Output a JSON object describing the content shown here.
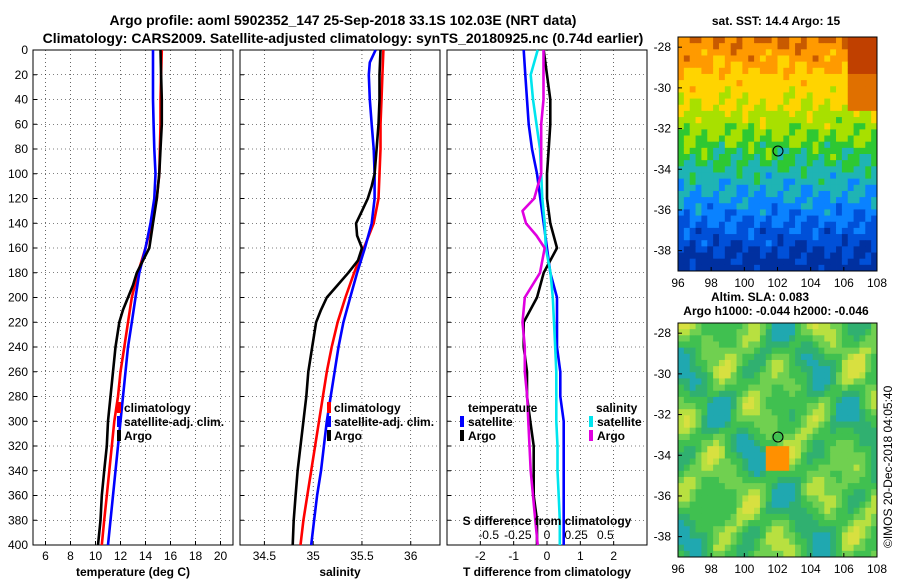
{
  "header": {
    "title_line1": "Argo profile: aoml 5902352_147 25-Sep-2018 33.1S 102.03E (NRT data)",
    "title_line2": "Climatology: CARS2009. Satellite-adjusted climatology: synTS_20180925.nc (0.74d earlier)"
  },
  "colors": {
    "argo": "#000000",
    "climatology": "#ff0000",
    "satellite": "#0000ff",
    "sat_salinity": "#00e5ee",
    "argo_salinity_diff": "#e000e0"
  },
  "chart_data": [
    {
      "type": "line",
      "title": "",
      "xlabel": "temperature (deg C)",
      "ylabel": "pressure",
      "xlim": [
        5,
        21
      ],
      "ylim": [
        400,
        0
      ],
      "xticks": [
        "6",
        "8",
        "10",
        "12",
        "14",
        "16",
        "18",
        "20"
      ],
      "yticks": [
        "0",
        "20",
        "40",
        "60",
        "80",
        "100",
        "120",
        "140",
        "160",
        "180",
        "200",
        "220",
        "240",
        "260",
        "280",
        "300",
        "320",
        "340",
        "360",
        "380",
        "400"
      ],
      "legend": [
        "climatology",
        "satellite-adj. clim.",
        "Argo"
      ],
      "series": [
        {
          "name": "climatology",
          "color": "#ff0000",
          "depth": [
            0,
            20,
            40,
            60,
            80,
            100,
            120,
            140,
            160,
            180,
            200,
            220,
            240,
            260,
            280,
            300,
            320,
            340,
            360,
            380,
            400
          ],
          "values": [
            15.3,
            15.25,
            15.2,
            15.2,
            15.15,
            15.1,
            14.9,
            14.5,
            14.0,
            13.4,
            12.9,
            12.6,
            12.3,
            12.0,
            11.8,
            11.5,
            11.3,
            11.1,
            10.9,
            10.7,
            10.5
          ]
        },
        {
          "name": "satellite-adj. clim.",
          "color": "#0000ff",
          "depth": [
            0,
            20,
            40,
            60,
            80,
            100,
            120,
            140,
            160,
            180,
            200,
            220,
            240,
            260,
            280,
            300,
            320,
            340,
            360,
            380,
            400
          ],
          "values": [
            14.6,
            14.6,
            14.6,
            14.65,
            14.7,
            14.8,
            14.7,
            14.4,
            14.0,
            13.5,
            13.2,
            12.9,
            12.6,
            12.4,
            12.2,
            12.0,
            11.8,
            11.6,
            11.4,
            11.2,
            11.0
          ]
        },
        {
          "name": "Argo",
          "color": "#000000",
          "depth": [
            0,
            20,
            40,
            60,
            80,
            100,
            120,
            140,
            160,
            180,
            190,
            200,
            210,
            220,
            240,
            260,
            280,
            300,
            320,
            340,
            360,
            380,
            400
          ],
          "values": [
            15.2,
            15.25,
            15.3,
            15.3,
            15.2,
            15.1,
            14.9,
            14.6,
            14.3,
            13.3,
            13.0,
            12.6,
            12.2,
            11.9,
            11.6,
            11.4,
            11.2,
            11.0,
            10.9,
            10.7,
            10.5,
            10.4,
            10.2
          ]
        }
      ]
    },
    {
      "type": "line",
      "xlabel": "salinity",
      "xlim": [
        34.25,
        36.3
      ],
      "ylim": [
        400,
        0
      ],
      "xticks": [
        "34.5",
        "35",
        "35.5",
        "36"
      ],
      "legend": [
        "climatology",
        "satellite-adj. clim.",
        "Argo"
      ],
      "series": [
        {
          "name": "climatology",
          "color": "#ff0000",
          "depth": [
            0,
            20,
            40,
            60,
            80,
            100,
            120,
            140,
            160,
            180,
            200,
            220,
            240,
            260,
            280,
            300,
            320,
            340,
            360,
            380,
            400
          ],
          "values": [
            35.72,
            35.71,
            35.7,
            35.69,
            35.69,
            35.68,
            35.67,
            35.62,
            35.52,
            35.42,
            35.33,
            35.25,
            35.19,
            35.14,
            35.1,
            35.06,
            35.02,
            34.98,
            34.94,
            34.9,
            34.87
          ]
        },
        {
          "name": "satellite-adj. clim.",
          "color": "#0000ff",
          "depth": [
            0,
            10,
            20,
            40,
            60,
            80,
            100,
            120,
            140,
            160,
            180,
            200,
            220,
            240,
            260,
            280,
            300,
            320,
            340,
            360,
            380,
            400
          ],
          "values": [
            35.64,
            35.58,
            35.57,
            35.58,
            35.6,
            35.62,
            35.63,
            35.63,
            35.6,
            35.53,
            35.45,
            35.38,
            35.31,
            35.26,
            35.22,
            35.18,
            35.14,
            35.11,
            35.08,
            35.04,
            35.01,
            34.98
          ]
        },
        {
          "name": "Argo",
          "color": "#000000",
          "depth": [
            0,
            20,
            40,
            60,
            80,
            100,
            110,
            120,
            130,
            140,
            150,
            160,
            170,
            180,
            190,
            200,
            210,
            220,
            240,
            260,
            280,
            300,
            320,
            340,
            360,
            380,
            400
          ],
          "values": [
            35.69,
            35.68,
            35.68,
            35.67,
            35.65,
            35.63,
            35.6,
            35.56,
            35.5,
            35.44,
            35.45,
            35.5,
            35.46,
            35.36,
            35.25,
            35.14,
            35.08,
            35.03,
            34.99,
            34.95,
            34.93,
            34.9,
            34.87,
            34.84,
            34.82,
            34.8,
            34.79
          ]
        }
      ]
    },
    {
      "type": "line",
      "xlabel": "T difference from climatology",
      "xlabel_top": "S difference from climatology",
      "xlim": [
        -3,
        3
      ],
      "ylim": [
        400,
        0
      ],
      "xticks": [
        "-2",
        "-1",
        "0",
        "1",
        "2"
      ],
      "xticks_s": [
        "-0.5",
        "-0.25",
        "0",
        "0.25",
        "0.5"
      ],
      "legend_temperature": {
        "heading": "temperature",
        "entries": [
          "satellite",
          "Argo"
        ]
      },
      "legend_salinity": {
        "heading": "salinity",
        "entries": [
          "satellite",
          "Argo"
        ]
      },
      "series": [
        {
          "name": "temperature satellite",
          "color": "#0000ff",
          "depth": [
            0,
            20,
            40,
            60,
            80,
            100,
            120,
            140,
            160,
            180,
            200,
            220,
            240,
            260,
            280,
            300,
            320,
            340,
            360,
            380,
            400
          ],
          "values": [
            -0.7,
            -0.65,
            -0.6,
            -0.55,
            -0.45,
            -0.3,
            -0.2,
            -0.1,
            0.0,
            0.1,
            0.3,
            0.3,
            0.3,
            0.4,
            0.4,
            0.5,
            0.5,
            0.5,
            0.5,
            0.5,
            0.5
          ]
        },
        {
          "name": "temperature Argo",
          "color": "#000000",
          "depth": [
            0,
            20,
            40,
            60,
            80,
            100,
            120,
            140,
            160,
            180,
            200,
            220,
            240,
            260,
            280,
            300,
            320,
            340,
            360,
            380,
            400
          ],
          "values": [
            -0.1,
            0.0,
            0.1,
            0.1,
            0.05,
            0.0,
            0.0,
            0.1,
            0.3,
            -0.1,
            -0.3,
            -0.7,
            -0.7,
            -0.6,
            -0.6,
            -0.5,
            -0.4,
            -0.4,
            -0.4,
            -0.3,
            -0.3
          ]
        },
        {
          "name": "salinity satellite",
          "color": "#00e5ee",
          "depth": [
            0,
            20,
            40,
            60,
            80,
            100,
            120,
            140,
            160,
            180,
            200,
            220,
            240,
            260,
            280,
            300,
            320,
            340,
            360,
            380,
            400
          ],
          "values": [
            -0.08,
            -0.14,
            -0.12,
            -0.09,
            -0.06,
            -0.05,
            -0.04,
            -0.02,
            -0.01,
            0.03,
            0.05,
            0.06,
            0.07,
            0.08,
            0.08,
            0.08,
            0.09,
            0.09,
            0.1,
            0.11,
            0.11
          ]
        },
        {
          "name": "salinity Argo",
          "color": "#e000e0",
          "depth": [
            0,
            20,
            40,
            60,
            80,
            100,
            120,
            130,
            140,
            150,
            160,
            180,
            200,
            220,
            240,
            260,
            280,
            300,
            320,
            340,
            360,
            380,
            400
          ],
          "values": [
            -0.03,
            -0.03,
            -0.03,
            -0.05,
            -0.05,
            -0.05,
            -0.11,
            -0.21,
            -0.18,
            -0.09,
            -0.02,
            -0.06,
            -0.19,
            -0.21,
            -0.19,
            -0.19,
            -0.17,
            -0.16,
            -0.15,
            -0.14,
            -0.12,
            -0.1,
            -0.08
          ]
        }
      ]
    },
    {
      "type": "heatmap",
      "title": "sat. SST: 14.4 Argo: 15",
      "xticks": [
        "96",
        "98",
        "100",
        "102",
        "104",
        "106",
        "108"
      ],
      "yticks": [
        "-28",
        "-30",
        "-32",
        "-34",
        "-36",
        "-38"
      ],
      "xlim": [
        96,
        108
      ],
      "ylim": [
        -39,
        -27.5
      ],
      "marker": {
        "lon": 102.03,
        "lat": -33.1
      }
    },
    {
      "type": "heatmap",
      "title": "Altim. SLA: 0.083",
      "subtitle": "Argo h1000: -0.044 h2000: -0.046",
      "xticks": [
        "96",
        "98",
        "100",
        "102",
        "104",
        "106",
        "108"
      ],
      "yticks": [
        "-28",
        "-30",
        "-32",
        "-34",
        "-36",
        "-38"
      ],
      "xlim": [
        96,
        108
      ],
      "ylim": [
        -39,
        -27.5
      ],
      "marker": {
        "lon": 102.03,
        "lat": -33.1
      }
    }
  ],
  "footer": {
    "credit": "©IMOS 20-Dec-2018 04:05:40"
  }
}
